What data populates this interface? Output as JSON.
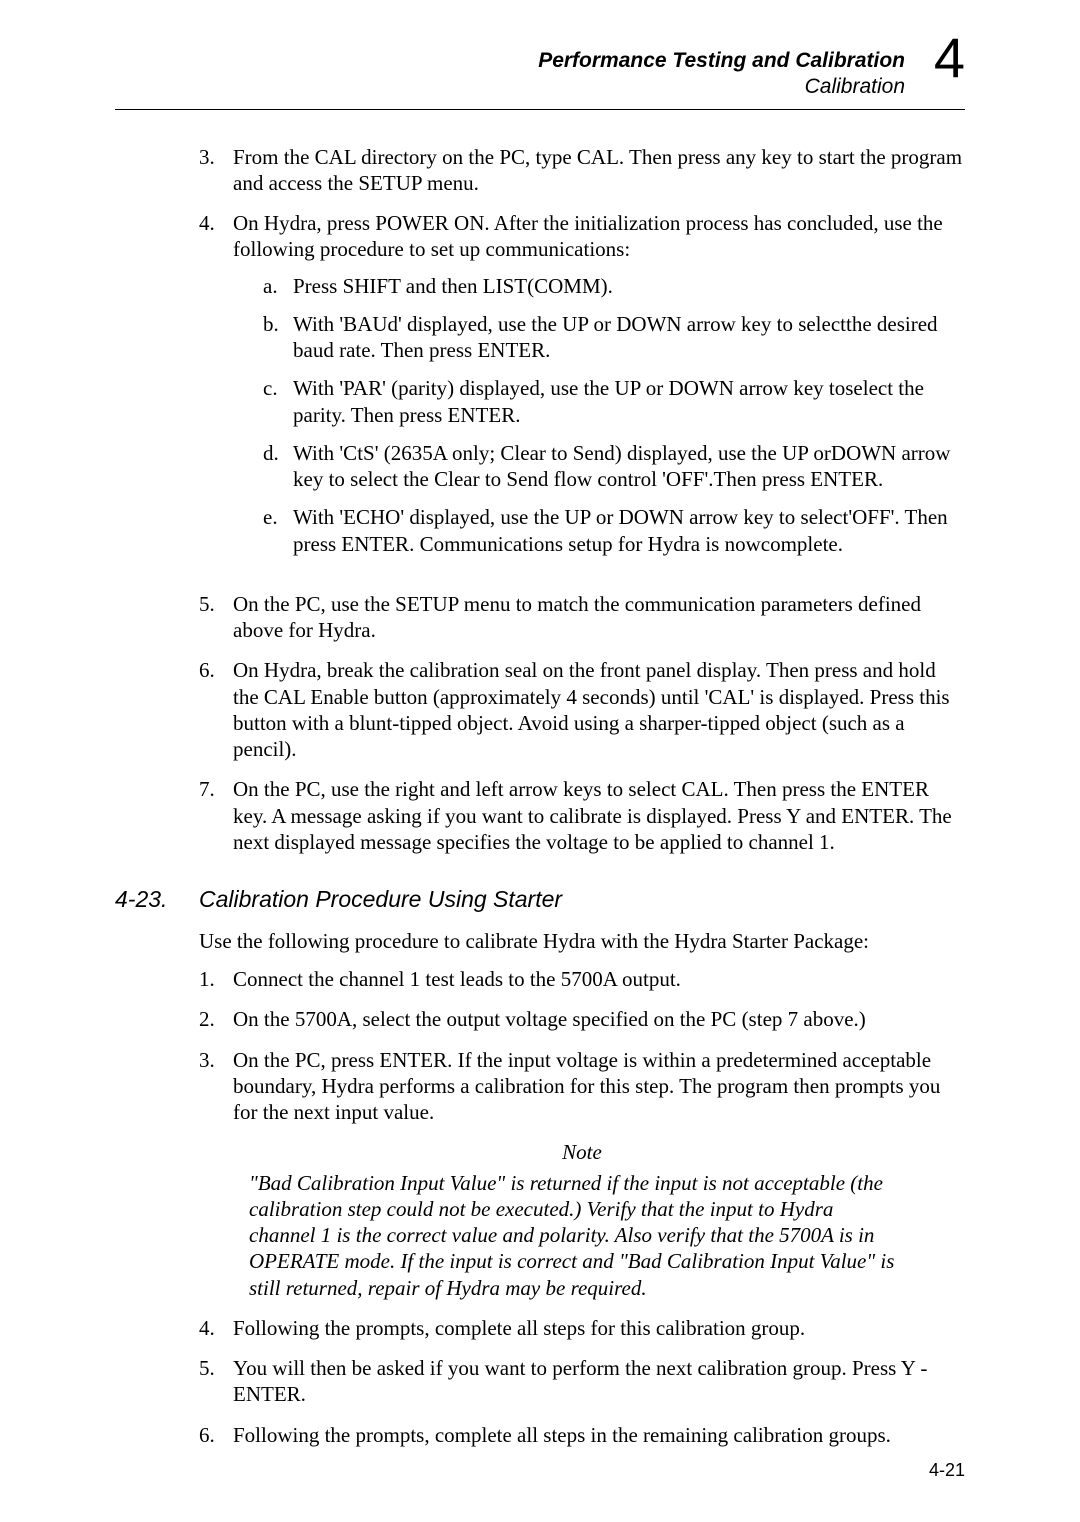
{
  "header": {
    "chapter_title": "Performance Testing and Calibration",
    "section_name": "Calibration",
    "chapter_number": "4"
  },
  "top_list": {
    "items": [
      {
        "num": "3.",
        "text": "From the CAL directory on the PC, type CAL. Then press any key to start the program and access the SETUP menu."
      },
      {
        "num": "4.",
        "text": "On Hydra, press POWER ON. After the initialization process has concluded, use the following procedure to set up communications:",
        "sub": [
          {
            "letter": "a.",
            "text": "Press SHIFT and then LIST(COMM)."
          },
          {
            "letter": "b.",
            "text": "With 'BAUd' displayed, use the UP or DOWN arrow key to selectthe desired baud rate. Then press ENTER."
          },
          {
            "letter": "c.",
            "text": "With 'PAR' (parity) displayed, use the UP or DOWN arrow key toselect the parity. Then press ENTER."
          },
          {
            "letter": "d.",
            "text": "With 'CtS' (2635A only; Clear to Send) displayed, use the UP orDOWN arrow key to select the Clear to Send flow control 'OFF'.Then press ENTER."
          },
          {
            "letter": "e.",
            "text": "With 'ECHO' displayed, use the UP or DOWN arrow key to select'OFF'. Then press ENTER. Communications setup for Hydra is nowcomplete."
          }
        ]
      },
      {
        "num": "5.",
        "text": "On the PC, use the SETUP menu to match the communication parameters defined above for Hydra."
      },
      {
        "num": "6.",
        "text": "On Hydra, break the calibration seal on the front panel display. Then press and hold the CAL Enable button (approximately 4 seconds) until 'CAL' is displayed. Press this button with a blunt-tipped object. Avoid using a sharper-tipped object (such as a pencil)."
      },
      {
        "num": "7.",
        "text": "On the PC, use the right and left arrow keys to select CAL. Then press the ENTER key. A message asking if you want to calibrate is displayed. Press Y and ENTER. The next displayed message specifies the voltage to be applied to channel 1."
      }
    ]
  },
  "section": {
    "number": "4-23.",
    "title": "Calibration Procedure Using Starter",
    "intro": "Use the following procedure to calibrate Hydra with the Hydra Starter Package:",
    "items_a": [
      {
        "num": "1.",
        "text": "Connect the channel 1 test leads to the 5700A output."
      },
      {
        "num": "2.",
        "text": "On the 5700A, select the output voltage specified on the PC (step 7 above.)"
      },
      {
        "num": "3.",
        "text": "On the PC, press ENTER. If the input voltage is within a predetermined acceptable boundary, Hydra performs a calibration for this step. The program then prompts you for the next input value."
      }
    ],
    "note_label": "Note",
    "note_body": "\"Bad Calibration Input Value\" is returned if the input is not acceptable (the calibration step could not be executed.) Verify that the input to Hydra channel 1 is the correct value and polarity. Also verify that the 5700A is in OPERATE mode. If the input is correct and \"Bad Calibration Input Value\" is still returned, repair of Hydra may be required.",
    "items_b": [
      {
        "num": "4.",
        "text": "Following the prompts, complete all steps for this calibration group."
      },
      {
        "num": "5.",
        "text": "You will then be asked if you want to perform the next calibration group. Press Y - ENTER."
      },
      {
        "num": "6.",
        "text": "Following the prompts, complete all steps in the remaining calibration groups."
      }
    ]
  },
  "page_number": "4-21"
}
